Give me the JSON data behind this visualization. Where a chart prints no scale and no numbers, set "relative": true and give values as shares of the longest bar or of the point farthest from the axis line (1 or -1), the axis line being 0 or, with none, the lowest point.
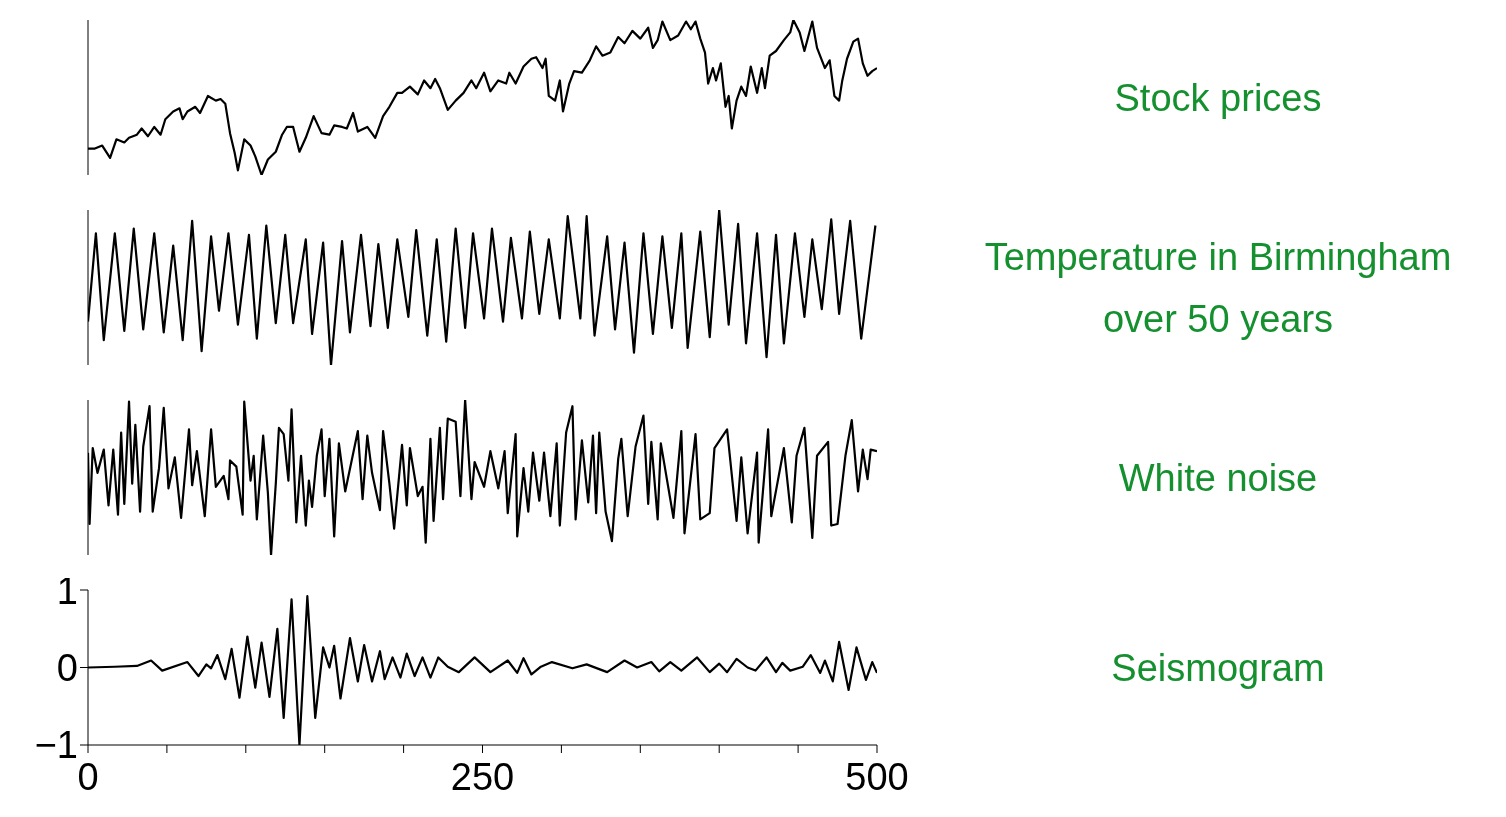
{
  "chart_data": [
    {
      "type": "line",
      "relative": true,
      "xlim": [
        0,
        500
      ],
      "tick_labels": false,
      "x": [
        0,
        4,
        9,
        14,
        18,
        23,
        26,
        31,
        34,
        38,
        42,
        46,
        49,
        54,
        58,
        60,
        63,
        68,
        71,
        76,
        81,
        84,
        87,
        90,
        93,
        95,
        99,
        103,
        106,
        110,
        114,
        119,
        123,
        126,
        130,
        134,
        138,
        143,
        148,
        153,
        156,
        161,
        164,
        168,
        171,
        177,
        182,
        187,
        191,
        196,
        199,
        204,
        209,
        213,
        217,
        220,
        223,
        228,
        233,
        238,
        243,
        246,
        251,
        255,
        260,
        265,
        267,
        271,
        276,
        281,
        284,
        288,
        290,
        292,
        296,
        299,
        301,
        305,
        308,
        313,
        318,
        322,
        326,
        331,
        336,
        340,
        345,
        350,
        355,
        358,
        361,
        364,
        369,
        374,
        379,
        382,
        385,
        388,
        391,
        393,
        396,
        398,
        401,
        404,
        406,
        408,
        411,
        414,
        417,
        420,
        424,
        427,
        429,
        432,
        436,
        441,
        445,
        447,
        451,
        454,
        459,
        462,
        467,
        470,
        473,
        476,
        478,
        481,
        485,
        488,
        491,
        494,
        497,
        500
      ],
      "series": [
        {
          "name": "Stock prices",
          "color": "#000000",
          "values": [
            0.17,
            0.17,
            0.19,
            0.11,
            0.23,
            0.21,
            0.24,
            0.26,
            0.3,
            0.25,
            0.31,
            0.26,
            0.36,
            0.41,
            0.43,
            0.36,
            0.41,
            0.44,
            0.4,
            0.51,
            0.48,
            0.49,
            0.46,
            0.27,
            0.14,
            0.03,
            0.23,
            0.19,
            0.12,
            0,
            0.1,
            0.15,
            0.26,
            0.31,
            0.31,
            0.15,
            0.24,
            0.38,
            0.27,
            0.26,
            0.32,
            0.31,
            0.3,
            0.4,
            0.28,
            0.31,
            0.24,
            0.38,
            0.44,
            0.53,
            0.53,
            0.57,
            0.52,
            0.61,
            0.56,
            0.62,
            0.56,
            0.42,
            0.48,
            0.53,
            0.61,
            0.56,
            0.66,
            0.54,
            0.61,
            0.59,
            0.66,
            0.59,
            0.7,
            0.75,
            0.76,
            0.69,
            0.75,
            0.51,
            0.48,
            0.61,
            0.41,
            0.59,
            0.67,
            0.66,
            0.74,
            0.83,
            0.77,
            0.79,
            0.89,
            0.85,
            0.93,
            0.88,
            0.95,
            0.82,
            0.87,
            0.99,
            0.87,
            0.9,
            0.99,
            0.94,
            0.99,
            0.88,
            0.79,
            0.59,
            0.69,
            0.61,
            0.72,
            0.44,
            0.51,
            0.3,
            0.48,
            0.57,
            0.51,
            0.7,
            0.53,
            0.69,
            0.56,
            0.77,
            0.8,
            0.87,
            0.92,
            1,
            0.92,
            0.8,
            0.99,
            0.82,
            0.69,
            0.74,
            0.51,
            0.48,
            0.61,
            0.75,
            0.86,
            0.88,
            0.72,
            0.64,
            0.67,
            0.69
          ]
        }
      ]
    },
    {
      "type": "line",
      "relative": true,
      "xlim": [
        0,
        500
      ],
      "tick_labels": false,
      "x": [
        0,
        5,
        10,
        17,
        23,
        29,
        35,
        42,
        48,
        54,
        60,
        66,
        72,
        78,
        83,
        89,
        95,
        102,
        107,
        113,
        119,
        125,
        130,
        138,
        142,
        149,
        154,
        161,
        166,
        173,
        179,
        184,
        190,
        196,
        203,
        208,
        215,
        221,
        227,
        233,
        239,
        244,
        251,
        256,
        263,
        268,
        275,
        280,
        286,
        292,
        299,
        304,
        312,
        316,
        321,
        329,
        334,
        340,
        346,
        352,
        358,
        364,
        370,
        376,
        380,
        388,
        394,
        400,
        406,
        412,
        417,
        424,
        430,
        436,
        441,
        448,
        454,
        459,
        465,
        471,
        476,
        483,
        490,
        499
      ],
      "series": [
        {
          "name": "Temperature in Birmingham over 50 years",
          "color": "#000000",
          "values": [
            0.28,
            0.85,
            0.16,
            0.85,
            0.22,
            0.88,
            0.23,
            0.85,
            0.21,
            0.77,
            0.16,
            0.93,
            0.09,
            0.83,
            0.35,
            0.85,
            0.26,
            0.84,
            0.17,
            0.9,
            0.27,
            0.84,
            0.27,
            0.81,
            0.2,
            0.79,
            0,
            0.8,
            0.21,
            0.84,
            0.25,
            0.78,
            0.24,
            0.81,
            0.31,
            0.87,
            0.19,
            0.81,
            0.15,
            0.88,
            0.24,
            0.85,
            0.3,
            0.88,
            0.28,
            0.82,
            0.3,
            0.86,
            0.33,
            0.81,
            0.3,
            0.96,
            0.3,
            0.96,
            0.19,
            0.83,
            0.23,
            0.79,
            0.08,
            0.85,
            0.2,
            0.83,
            0.24,
            0.85,
            0.11,
            0.86,
            0.18,
            1,
            0.26,
            0.91,
            0.14,
            0.85,
            0.05,
            0.84,
            0.14,
            0.85,
            0.31,
            0.81,
            0.36,
            0.94,
            0.33,
            0.93,
            0.17,
            0.9
          ]
        }
      ]
    },
    {
      "type": "line",
      "relative": true,
      "xlim": [
        0,
        500
      ],
      "tick_labels": false,
      "x": [
        0,
        1,
        3,
        6,
        10,
        13,
        16,
        19,
        21,
        23,
        26,
        28,
        30,
        33,
        35,
        39,
        41,
        45,
        48,
        51,
        55,
        59,
        64,
        66,
        69,
        74,
        78,
        81,
        86,
        89,
        90,
        94,
        98,
        99,
        103,
        105,
        107,
        111,
        114,
        116,
        119,
        121,
        124,
        127,
        129,
        132,
        135,
        138,
        140,
        142,
        145,
        148,
        150,
        153,
        156,
        159,
        163,
        171,
        174,
        177,
        180,
        185,
        187,
        191,
        194,
        199,
        202,
        204,
        209,
        212,
        214,
        217,
        219,
        223,
        225,
        228,
        233,
        236,
        239,
        243,
        245,
        251,
        255,
        260,
        264,
        266,
        271,
        272,
        276,
        279,
        282,
        286,
        289,
        293,
        297,
        299,
        303,
        307,
        309,
        313,
        317,
        320,
        322,
        324,
        328,
        332,
        336,
        338,
        342,
        347,
        352,
        355,
        357,
        361,
        363,
        371,
        376,
        378,
        385,
        388,
        394,
        397,
        405,
        411,
        414,
        418,
        424,
        425,
        431,
        433,
        441,
        446,
        449,
        454,
        459,
        462,
        469,
        471,
        475,
        480,
        484,
        488,
        491,
        494,
        496,
        500
      ],
      "series": [
        {
          "name": "White noise",
          "color": "#000000",
          "values": [
            0.66,
            0.2,
            0.69,
            0.53,
            0.68,
            0.32,
            0.68,
            0.26,
            0.79,
            0.33,
            0.99,
            0.46,
            0.84,
            0.28,
            0.7,
            0.96,
            0.28,
            0.56,
            0.95,
            0.43,
            0.63,
            0.24,
            0.81,
            0.45,
            0.67,
            0.25,
            0.81,
            0.44,
            0.51,
            0.36,
            0.61,
            0.57,
            0.26,
            0.99,
            0.48,
            0.64,
            0.23,
            0.77,
            0.4,
            0,
            0.46,
            0.82,
            0.78,
            0.48,
            0.94,
            0.21,
            0.64,
            0.19,
            0.48,
            0.31,
            0.64,
            0.81,
            0.38,
            0.75,
            0.12,
            0.72,
            0.41,
            0.8,
            0.36,
            0.77,
            0.53,
            0.29,
            0.8,
            0.46,
            0.17,
            0.71,
            0.32,
            0.69,
            0.38,
            0.44,
            0.08,
            0.75,
            0.22,
            0.82,
            0.36,
            0.88,
            0.86,
            0.38,
            1,
            0.36,
            0.6,
            0.44,
            0.67,
            0.43,
            0.67,
            0.27,
            0.78,
            0.12,
            0.56,
            0.28,
            0.66,
            0.35,
            0.66,
            0.25,
            0.72,
            0.19,
            0.79,
            0.96,
            0.23,
            0.74,
            0.34,
            0.77,
            0.27,
            0.79,
            0.28,
            0.09,
            0.62,
            0.75,
            0.25,
            0.7,
            0.9,
            0.33,
            0.73,
            0.23,
            0.72,
            0.24,
            0.8,
            0.14,
            0.78,
            0.23,
            0.27,
            0.69,
            0.81,
            0.22,
            0.63,
            0.14,
            0.66,
            0.08,
            0.81,
            0.25,
            0.69,
            0.21,
            0.64,
            0.82,
            0.11,
            0.64,
            0.73,
            0.19,
            0.2,
            0.64,
            0.87,
            0.41,
            0.68,
            0.49,
            0.68,
            0.67
          ]
        }
      ]
    },
    {
      "type": "line",
      "xlim": [
        0,
        500
      ],
      "xticks": [
        0,
        {
          "value": 50,
          "label": null
        },
        {
          "value": 100,
          "label": null
        },
        {
          "value": 150,
          "label": null
        },
        {
          "value": 200,
          "label": null
        },
        250,
        {
          "value": 300,
          "label": null
        },
        {
          "value": 350,
          "label": null
        },
        {
          "value": 400,
          "label": null
        },
        {
          "value": 450,
          "label": null
        },
        500
      ],
      "ylim": [
        -1,
        1
      ],
      "yticks": [
        {
          "value": -1,
          "label": "−1"
        },
        0,
        1
      ],
      "x": [
        0,
        17,
        31,
        40,
        47,
        63,
        70,
        75,
        78,
        82,
        87,
        91,
        96,
        101,
        106,
        110,
        115,
        120,
        124,
        129,
        134,
        139,
        144,
        149,
        153,
        156,
        160,
        166,
        171,
        175,
        180,
        185,
        188,
        193,
        198,
        202,
        207,
        212,
        217,
        222,
        228,
        235,
        245,
        255,
        266,
        272,
        276,
        281,
        287,
        294,
        307,
        316,
        329,
        340,
        348,
        357,
        362,
        369,
        376,
        386,
        394,
        400,
        405,
        411,
        418,
        423,
        430,
        436,
        440,
        445,
        453,
        458,
        464,
        467,
        472,
        476,
        482,
        487,
        493,
        497,
        500
      ],
      "series": [
        {
          "name": "Seismogram",
          "color": "#000000",
          "values": [
            0,
            0.01,
            0.02,
            0.09,
            -0.04,
            0.07,
            -0.11,
            0.04,
            -0.01,
            0.16,
            -0.15,
            0.24,
            -0.39,
            0.4,
            -0.26,
            0.32,
            -0.38,
            0.5,
            -0.65,
            0.88,
            -1,
            0.92,
            -0.65,
            0.26,
            0,
            0.28,
            -0.4,
            0.38,
            -0.18,
            0.29,
            -0.18,
            0.21,
            -0.15,
            0.13,
            -0.13,
            0.18,
            -0.11,
            0.13,
            -0.13,
            0.13,
            0.01,
            -0.06,
            0.13,
            -0.06,
            0.09,
            -0.07,
            0.12,
            -0.09,
            0.01,
            0.07,
            -0.01,
            0.04,
            -0.06,
            0.09,
            0,
            0.07,
            -0.05,
            0.07,
            -0.04,
            0.13,
            -0.06,
            0.05,
            -0.06,
            0.11,
            0,
            -0.04,
            0.13,
            -0.06,
            0.06,
            -0.04,
            0.01,
            0.16,
            -0.07,
            0.09,
            -0.18,
            0.33,
            -0.29,
            0.26,
            -0.16,
            0.07,
            -0.07
          ]
        }
      ]
    }
  ]
}
